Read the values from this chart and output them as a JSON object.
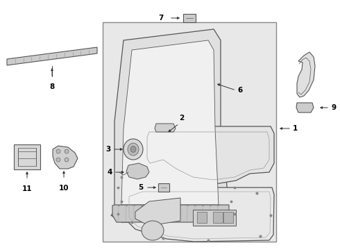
{
  "fig_bg": "#ffffff",
  "box_bg": "#e8e8e8",
  "box_border": "#888888",
  "line_color": "#444444",
  "label_fontsize": 7.5,
  "arrow_color": "#333333",
  "part_line_color": "#555555"
}
